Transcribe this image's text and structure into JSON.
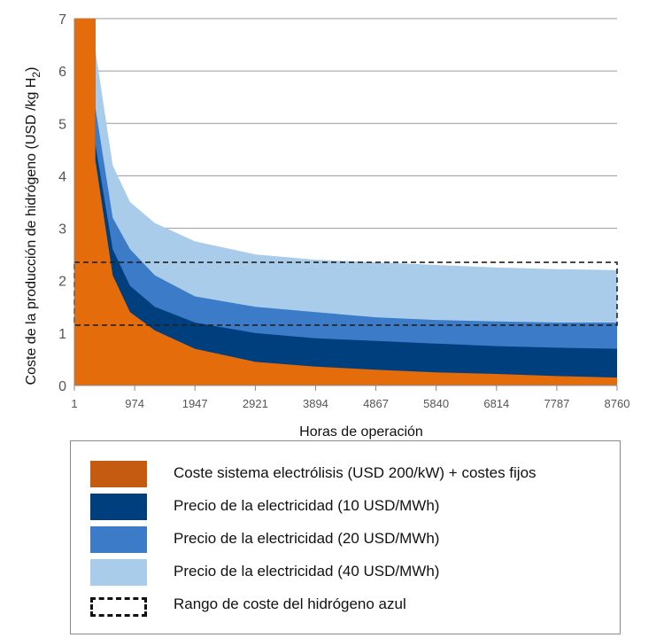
{
  "chart_data": {
    "type": "area",
    "title": "",
    "xlabel": "Horas de operación",
    "ylabel_main": "Coste de la producción de hidrógeno (USD /kg H",
    "ylabel_sub": "2",
    "ylabel_end": ")",
    "xlim": [
      1,
      8760
    ],
    "ylim": [
      0,
      7
    ],
    "x_ticks": [
      1,
      974,
      1947,
      2921,
      3894,
      4867,
      5840,
      6814,
      7787,
      8760
    ],
    "x_tick_labels": [
      "1",
      "974",
      "1947",
      "2921",
      "3894",
      "4867",
      "5840",
      "6814",
      "7787",
      "8760"
    ],
    "y_ticks": [
      0,
      1,
      2,
      3,
      4,
      5,
      6,
      7
    ],
    "y_tick_labels": [
      "0",
      "1",
      "2",
      "3",
      "4",
      "5",
      "6",
      "7"
    ],
    "grid": true,
    "x": [
      1,
      340,
      340,
      620,
      900,
      1300,
      1947,
      2921,
      3894,
      4867,
      5840,
      6814,
      7787,
      8760
    ],
    "series": [
      {
        "name": "Coste sistema electrólisis (USD 200/kW) + costes fijos",
        "color": "#E46C0A",
        "values": [
          7,
          7,
          4.3,
          2.1,
          1.4,
          1.05,
          0.7,
          0.45,
          0.36,
          0.3,
          0.25,
          0.22,
          0.18,
          0.15
        ]
      },
      {
        "name": "Precio de la electricidad (10 USD/MWh)",
        "color": "#003F7D",
        "values": [
          null,
          null,
          4.6,
          2.6,
          1.9,
          1.5,
          1.2,
          1.0,
          0.9,
          0.85,
          0.8,
          0.75,
          0.72,
          0.7
        ]
      },
      {
        "name": "Precio de la electricidad (20 USD/MWh)",
        "color": "#3B7BC8",
        "values": [
          null,
          null,
          5.3,
          3.2,
          2.6,
          2.1,
          1.7,
          1.5,
          1.4,
          1.3,
          1.25,
          1.22,
          1.2,
          1.2
        ]
      },
      {
        "name": "Precio de la electricidad (40 USD/MWh)",
        "color": "#A8CCEA",
        "values": [
          null,
          null,
          6.4,
          4.2,
          3.5,
          3.1,
          2.75,
          2.5,
          2.4,
          2.35,
          2.3,
          2.25,
          2.22,
          2.2
        ]
      }
    ],
    "reference_band": {
      "name": "Rango de coste del hidrógeno azul",
      "ymin": 1.15,
      "ymax": 2.35
    }
  },
  "legend": {
    "items": [
      {
        "label": "Coste sistema electrólisis (USD 200/kW) + costes fijos",
        "color": "#C55A11",
        "style": "solid"
      },
      {
        "label": "Precio de la electricidad (10 USD/MWh)",
        "color": "#003F7D",
        "style": "solid"
      },
      {
        "label": "Precio de la electricidad (20 USD/MWh)",
        "color": "#3B7BC8",
        "style": "solid"
      },
      {
        "label": "Precio de la electricidad (40 USD/MWh)",
        "color": "#A8CCEA",
        "style": "solid"
      },
      {
        "label": "Rango de coste del hidrógeno azul",
        "color": "#111111",
        "style": "dashed"
      }
    ]
  }
}
